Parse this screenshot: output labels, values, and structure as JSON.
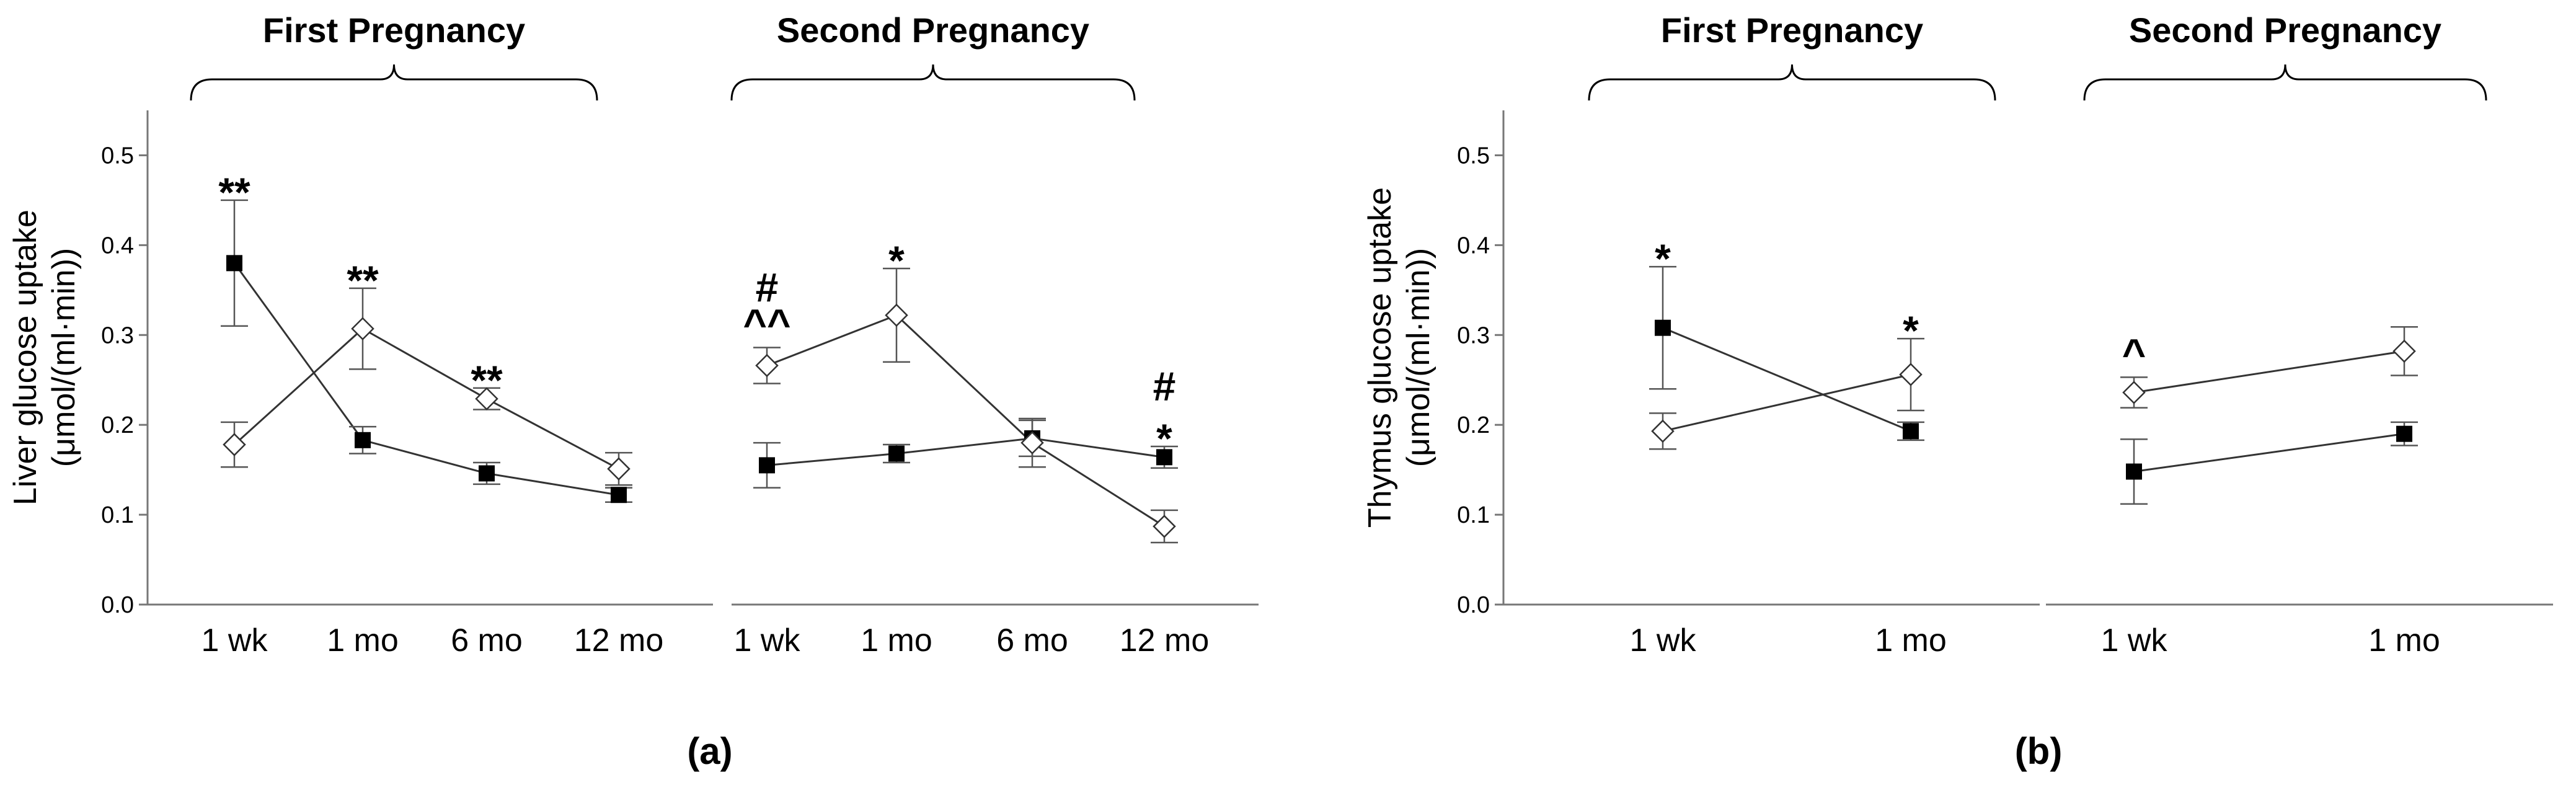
{
  "chart_data": [
    {
      "type": "line",
      "panel": "(a)",
      "ylabel_line1": "Liver glucose uptake",
      "ylabel_line2": "(μmol/(ml·min))",
      "ylim": [
        0.0,
        0.55
      ],
      "yticks": [
        "0.0",
        "0.1",
        "0.2",
        "0.3",
        "0.4",
        "0.5"
      ],
      "groups": [
        {
          "title": "First Pregnancy",
          "categories": [
            "1 wk",
            "1 mo",
            "6 mo",
            "12 mo"
          ],
          "series": [
            {
              "name": "filled-square",
              "marker": "square",
              "values": [
                0.38,
                0.183,
                0.146,
                0.122
              ],
              "err": [
                0.07,
                0.015,
                0.012,
                0.008
              ]
            },
            {
              "name": "open-diamond",
              "marker": "diamond",
              "values": [
                0.178,
                0.307,
                0.229,
                0.151
              ],
              "err": [
                0.025,
                0.045,
                0.012,
                0.018
              ]
            }
          ],
          "annotations": [
            {
              "index": 0,
              "lines": [
                "**"
              ]
            },
            {
              "index": 1,
              "lines": [
                "**"
              ]
            },
            {
              "index": 2,
              "lines": [
                "**"
              ]
            }
          ]
        },
        {
          "title": "Second Pregnancy",
          "categories": [
            "1 wk",
            "1 mo",
            "6 mo",
            "12 mo"
          ],
          "series": [
            {
              "name": "filled-square",
              "marker": "square",
              "values": [
                0.155,
                0.168,
                0.185,
                0.164
              ],
              "err": [
                0.025,
                0.01,
                0.02,
                0.012
              ]
            },
            {
              "name": "open-diamond",
              "marker": "diamond",
              "values": [
                0.266,
                0.322,
                0.18,
                0.087
              ],
              "err": [
                0.02,
                0.052,
                0.027,
                0.018
              ]
            }
          ],
          "annotations": [
            {
              "index": 0,
              "lines": [
                "#",
                "^^"
              ]
            },
            {
              "index": 1,
              "lines": [
                "*"
              ]
            },
            {
              "index": 3,
              "lines": [
                "#",
                "*"
              ]
            }
          ]
        }
      ]
    },
    {
      "type": "line",
      "panel": "(b)",
      "ylabel_line1": "Thymus glucose uptake",
      "ylabel_line2": "(μmol/(ml·min))",
      "ylim": [
        0.0,
        0.55
      ],
      "yticks": [
        "0.0",
        "0.1",
        "0.2",
        "0.3",
        "0.4",
        "0.5"
      ],
      "groups": [
        {
          "title": "First Pregnancy",
          "categories": [
            "1 wk",
            "1 mo"
          ],
          "series": [
            {
              "name": "filled-square",
              "marker": "square",
              "values": [
                0.308,
                0.193
              ],
              "err": [
                0.068,
                0.01
              ]
            },
            {
              "name": "open-diamond",
              "marker": "diamond",
              "values": [
                0.193,
                0.256
              ],
              "err": [
                0.02,
                0.04
              ]
            }
          ],
          "annotations": [
            {
              "index": 0,
              "lines": [
                "*"
              ]
            },
            {
              "index": 1,
              "lines": [
                "*"
              ]
            }
          ]
        },
        {
          "title": "Second Pregnancy",
          "categories": [
            "1 wk",
            "1 mo"
          ],
          "series": [
            {
              "name": "filled-square",
              "marker": "square",
              "values": [
                0.148,
                0.19
              ],
              "err": [
                0.036,
                0.013
              ]
            },
            {
              "name": "open-diamond",
              "marker": "diamond",
              "values": [
                0.236,
                0.282
              ],
              "err": [
                0.017,
                0.027
              ]
            }
          ],
          "annotations": [
            {
              "index": 0,
              "lines": [
                "^"
              ]
            }
          ]
        }
      ]
    }
  ]
}
